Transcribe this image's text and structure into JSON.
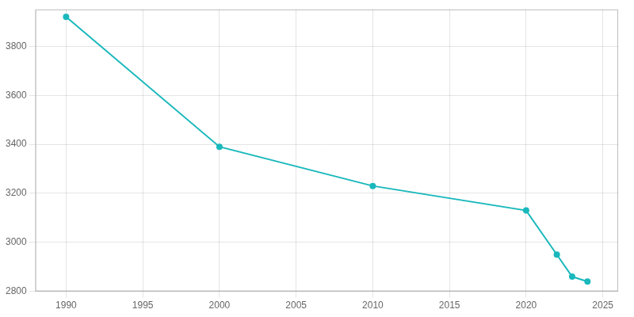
{
  "chart_data": {
    "type": "line",
    "x": [
      1990,
      2000,
      2010,
      2020,
      2022,
      2023,
      2024
    ],
    "values": [
      3920,
      3390,
      3230,
      3130,
      2950,
      2860,
      2840
    ],
    "color": "#1ab8bc",
    "marker": "circle",
    "xlim": [
      1988,
      2026
    ],
    "xticks": [
      1990,
      1995,
      2000,
      2005,
      2010,
      2015,
      2020,
      2025
    ],
    "ylim": [
      2800,
      3950
    ],
    "yticks": [
      2800,
      3000,
      3200,
      3400,
      3600,
      3800
    ],
    "grid": true
  }
}
